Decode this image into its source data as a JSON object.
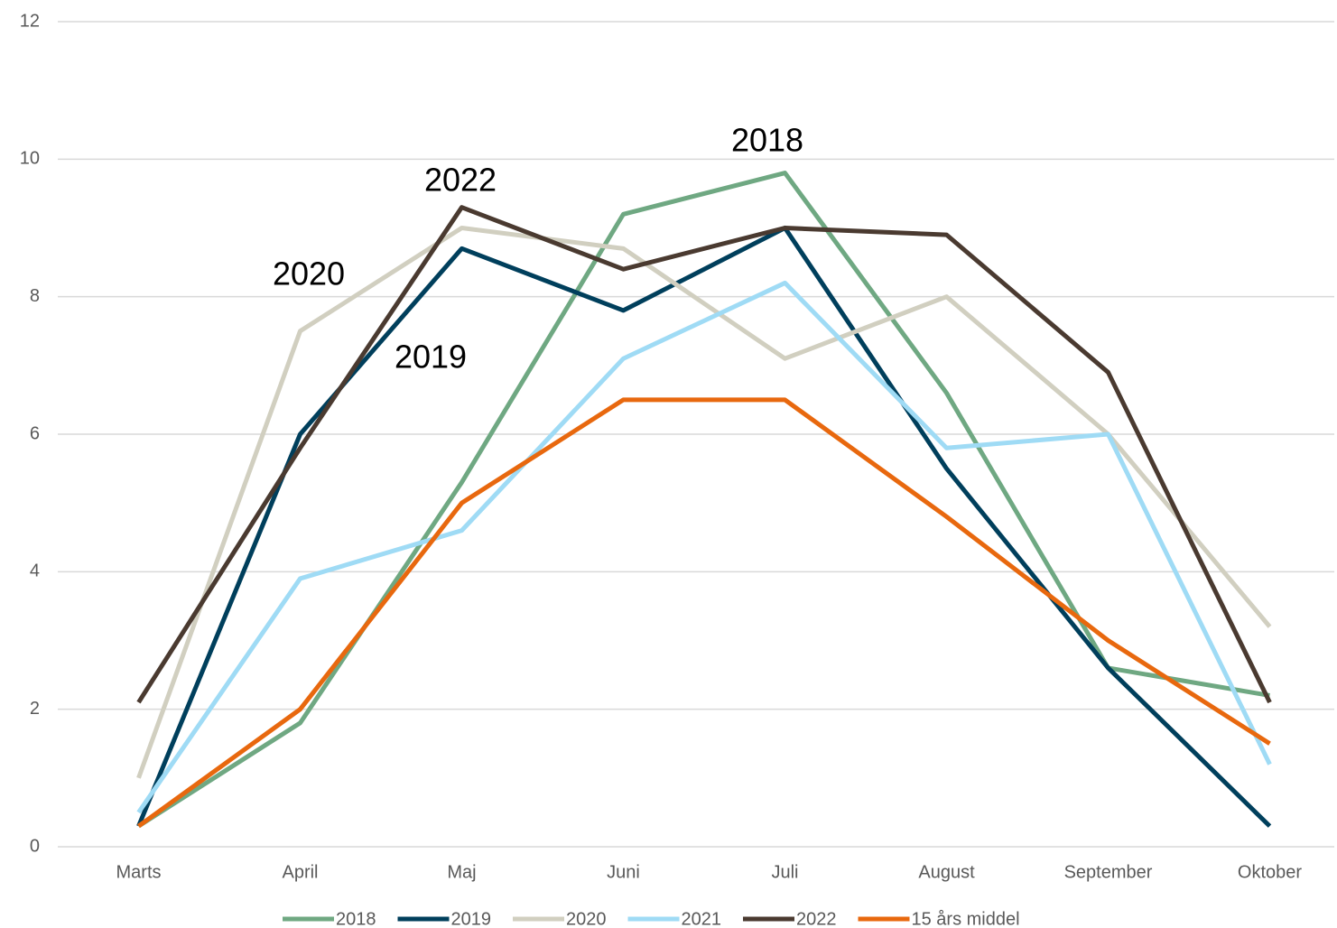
{
  "chart_data": {
    "type": "line",
    "categories": [
      "Marts",
      "April",
      "Maj",
      "Juni",
      "Juli",
      "August",
      "September",
      "Oktober"
    ],
    "series": [
      {
        "name": "2018",
        "color": "#6fa882",
        "values": [
          0.3,
          1.8,
          5.3,
          9.2,
          9.8,
          6.6,
          2.6,
          2.2
        ]
      },
      {
        "name": "2019",
        "color": "#003f5c",
        "values": [
          0.3,
          6.0,
          8.7,
          7.8,
          9.0,
          5.5,
          2.6,
          0.3
        ]
      },
      {
        "name": "2020",
        "color": "#d1cfc0",
        "values": [
          1.0,
          7.5,
          9.0,
          8.7,
          7.1,
          8.0,
          6.0,
          3.2
        ]
      },
      {
        "name": "2021",
        "color": "#9fdbf5",
        "values": [
          0.5,
          3.9,
          4.6,
          7.1,
          8.2,
          5.8,
          6.0,
          1.2
        ]
      },
      {
        "name": "2022",
        "color": "#4a3a30",
        "values": [
          2.1,
          5.8,
          9.3,
          8.4,
          9.0,
          8.9,
          6.9,
          2.1
        ]
      },
      {
        "name": "15 års middel",
        "color": "#e8680e",
        "values": [
          0.3,
          2.0,
          5.0,
          6.5,
          6.5,
          4.8,
          3.0,
          1.5
        ]
      }
    ],
    "annotations": [
      "2018",
      "2022",
      "2020",
      "2019"
    ],
    "ylim": [
      0,
      12
    ],
    "yticks": [
      0,
      2,
      4,
      6,
      8,
      10,
      12
    ],
    "grid": true,
    "legend": "bottom"
  }
}
